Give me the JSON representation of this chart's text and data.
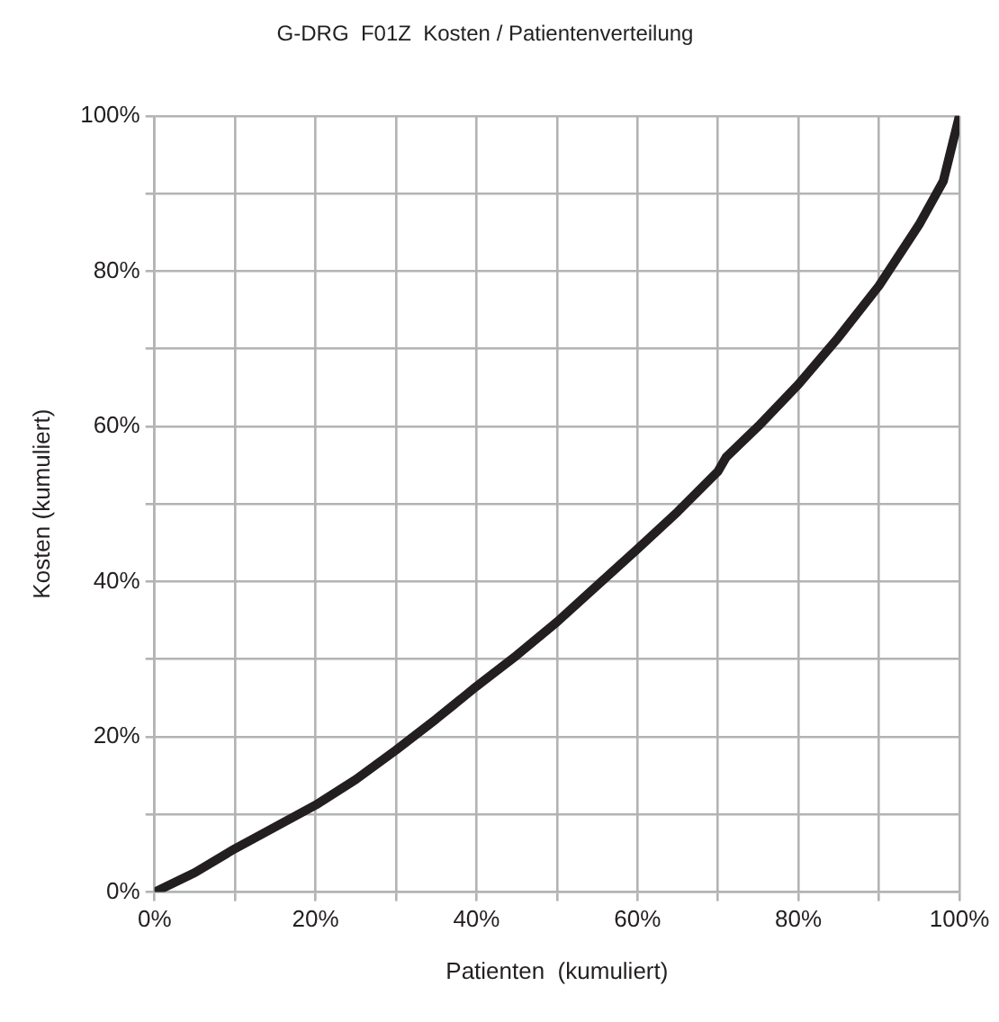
{
  "chart_data": {
    "type": "line",
    "title": "G-DRG  F01Z  Kosten / Patientenverteilung",
    "xlabel": "Patienten  (kumuliert)",
    "ylabel": "Kosten (kumuliert)",
    "x": [
      0,
      2,
      5,
      10,
      15,
      20,
      25,
      30,
      35,
      40,
      45,
      50,
      55,
      60,
      65,
      70,
      71,
      75,
      80,
      85,
      90,
      95,
      98,
      100
    ],
    "series": [
      {
        "color": "#231f20",
        "values": [
          0,
          1,
          2.5,
          5.6,
          8.4,
          11.2,
          14.5,
          18.3,
          22.3,
          26.5,
          30.5,
          34.8,
          39.5,
          44.2,
          49,
          54.2,
          56,
          60,
          65.4,
          71.5,
          78.1,
          86,
          91.6,
          100
        ]
      }
    ],
    "xlim": [
      0,
      100
    ],
    "ylim": [
      0,
      100
    ],
    "xticks": [
      {
        "value": 0,
        "label": "0%"
      },
      {
        "value": 10,
        "label": null
      },
      {
        "value": 20,
        "label": "20%"
      },
      {
        "value": 30,
        "label": null
      },
      {
        "value": 40,
        "label": "40%"
      },
      {
        "value": 50,
        "label": null
      },
      {
        "value": 60,
        "label": "60%"
      },
      {
        "value": 70,
        "label": null
      },
      {
        "value": 80,
        "label": "80%"
      },
      {
        "value": 90,
        "label": null
      },
      {
        "value": 100,
        "label": "100%"
      }
    ],
    "yticks": [
      {
        "value": 0,
        "label": "0%"
      },
      {
        "value": 10,
        "label": null
      },
      {
        "value": 20,
        "label": "20%"
      },
      {
        "value": 30,
        "label": null
      },
      {
        "value": 40,
        "label": "40%"
      },
      {
        "value": 50,
        "label": null
      },
      {
        "value": 60,
        "label": "60%"
      },
      {
        "value": 70,
        "label": null
      },
      {
        "value": 80,
        "label": "80%"
      },
      {
        "value": 90,
        "label": null
      },
      {
        "value": 100,
        "label": "100%"
      }
    ],
    "grid": true,
    "legend": false,
    "marker": "none",
    "line_style": "solid"
  }
}
